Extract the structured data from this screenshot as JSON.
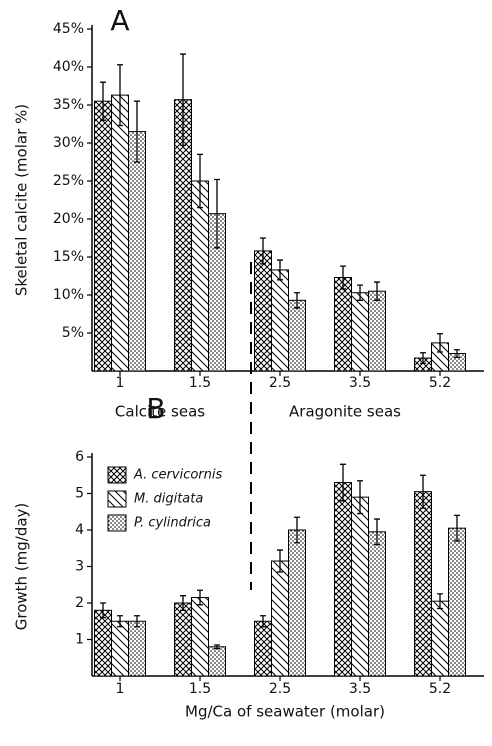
{
  "chart_data": [
    {
      "type": "bar",
      "title": "A",
      "y_label": "Skeletal calcite (molar %)",
      "categories": [
        "1",
        "1.5",
        "2.5",
        "3.5",
        "5.2"
      ],
      "annotations": [
        "Calcite seas",
        "Aragonite seas"
      ],
      "series": [
        {
          "name": "A. cervicornis",
          "pattern": "crosshatch",
          "color": "#000000",
          "values": [
            35.5,
            35.7,
            15.8,
            12.3,
            1.7
          ],
          "errors": [
            2.5,
            6.0,
            1.7,
            1.5,
            0.7
          ]
        },
        {
          "name": "M. digitata",
          "pattern": "hatch",
          "color": "#000000",
          "values": [
            36.3,
            25.0,
            13.3,
            10.3,
            3.7
          ],
          "errors": [
            4.0,
            3.5,
            1.3,
            1.0,
            1.2
          ]
        },
        {
          "name": "P. cylindrica",
          "pattern": "dots",
          "color": "#000000",
          "values": [
            31.5,
            20.7,
            9.3,
            10.5,
            2.3
          ],
          "errors": [
            4.0,
            4.5,
            1.0,
            1.2,
            0.5
          ]
        }
      ],
      "ylim": [
        0,
        45
      ],
      "yticks": [
        {
          "value": 5,
          "label": "5%"
        },
        {
          "value": 10,
          "label": "10%"
        },
        {
          "value": 15,
          "label": "15%"
        },
        {
          "value": 20,
          "label": "20%"
        },
        {
          "value": 25,
          "label": "25%"
        },
        {
          "value": 30,
          "label": "30%"
        },
        {
          "value": 35,
          "label": "35%"
        },
        {
          "value": 40,
          "label": "40%"
        },
        {
          "value": 45,
          "label": "45%"
        }
      ],
      "legend": false
    },
    {
      "type": "bar",
      "title": "B",
      "y_label": "Growth (mg/day)",
      "x_label": "Mg/Ca of seawater (molar)",
      "categories": [
        "1",
        "1.5",
        "2.5",
        "3.5",
        "5.2"
      ],
      "series": [
        {
          "name": "A. cervicornis",
          "pattern": "crosshatch",
          "color": "#000000",
          "values": [
            1.8,
            2.0,
            1.5,
            5.3,
            5.05
          ],
          "errors": [
            0.2,
            0.2,
            0.15,
            0.5,
            0.45
          ]
        },
        {
          "name": "M. digitata",
          "pattern": "hatch",
          "color": "#000000",
          "values": [
            1.5,
            2.15,
            3.15,
            4.9,
            2.05
          ],
          "errors": [
            0.15,
            0.2,
            0.3,
            0.45,
            0.2
          ]
        },
        {
          "name": "P. cylindrica",
          "pattern": "dots",
          "color": "#000000",
          "values": [
            1.5,
            0.8,
            4.0,
            3.95,
            4.05
          ],
          "errors": [
            0.15,
            0.05,
            0.35,
            0.35,
            0.35
          ]
        }
      ],
      "ylim": [
        0,
        6
      ],
      "yticks": [
        1,
        2,
        3,
        4,
        5,
        6
      ],
      "legend": true,
      "legend_position": "upper left"
    }
  ]
}
